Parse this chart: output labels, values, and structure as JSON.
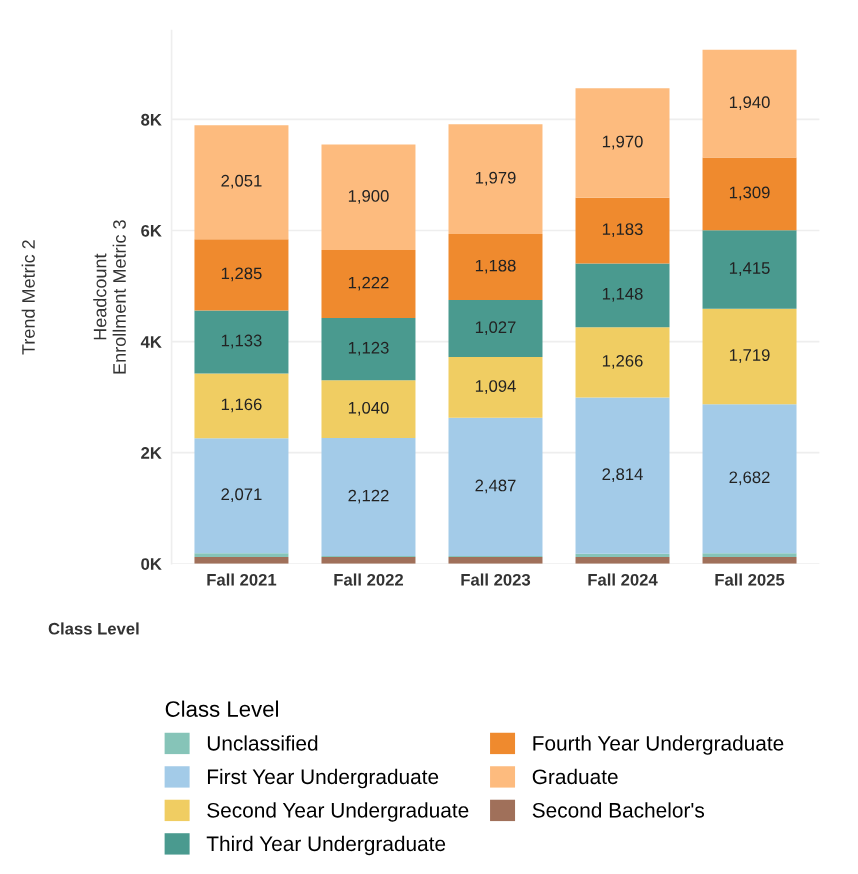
{
  "chart_data": {
    "type": "bar",
    "stacked": true,
    "categories": [
      "Fall 2021",
      "Fall 2022",
      "Fall 2023",
      "Fall 2024",
      "Fall 2025"
    ],
    "ylabel": "Headcount\nEnrollment Metric 3",
    "xlabel": "Class Level",
    "legend_title": "Class Level",
    "annotations": [
      "Trend Metric 2"
    ],
    "ylim": [
      0,
      9600
    ],
    "yticks": [
      {
        "value": 0,
        "label": "0K"
      },
      {
        "value": 2000,
        "label": "2K"
      },
      {
        "value": 4000,
        "label": "4K"
      },
      {
        "value": 6000,
        "label": "6K"
      },
      {
        "value": 8000,
        "label": "8K"
      }
    ],
    "grid": "y",
    "legend": "bottom",
    "series": [
      {
        "name": "Second Bachelor's",
        "color": "#a0705a",
        "values": [
          120,
          120,
          120,
          120,
          120
        ]
      },
      {
        "name": "Unclassified",
        "color": "#86c4b8",
        "values": [
          70,
          20,
          20,
          60,
          70
        ]
      },
      {
        "name": "First Year Undergraduate",
        "color": "#a3cbe8",
        "values": [
          2071,
          2122,
          2487,
          2814,
          2682
        ],
        "value_labels": [
          "2,071",
          "2,122",
          "2,487",
          "2,814",
          "2,682"
        ]
      },
      {
        "name": "Second Year Undergraduate",
        "color": "#f0cd62",
        "values": [
          1166,
          1040,
          1094,
          1266,
          1719
        ],
        "value_labels": [
          "1,166",
          "1,040",
          "1,094",
          "1,266",
          "1,719"
        ]
      },
      {
        "name": "Third Year Undergraduate",
        "color": "#4a9a8f",
        "values": [
          1133,
          1123,
          1027,
          1148,
          1415
        ],
        "value_labels": [
          "1,133",
          "1,123",
          "1,027",
          "1,148",
          "1,415"
        ]
      },
      {
        "name": "Fourth Year Undergraduate",
        "color": "#ef8a2e",
        "values": [
          1285,
          1222,
          1188,
          1183,
          1309
        ],
        "value_labels": [
          "1,285",
          "1,222",
          "1,188",
          "1,183",
          "1,309"
        ]
      },
      {
        "name": "Graduate",
        "color": "#fdbb7e",
        "values": [
          2051,
          1900,
          1979,
          1970,
          1940
        ],
        "value_labels": [
          "2,051",
          "1,900",
          "1,979",
          "1,970",
          "1,940"
        ]
      }
    ]
  }
}
